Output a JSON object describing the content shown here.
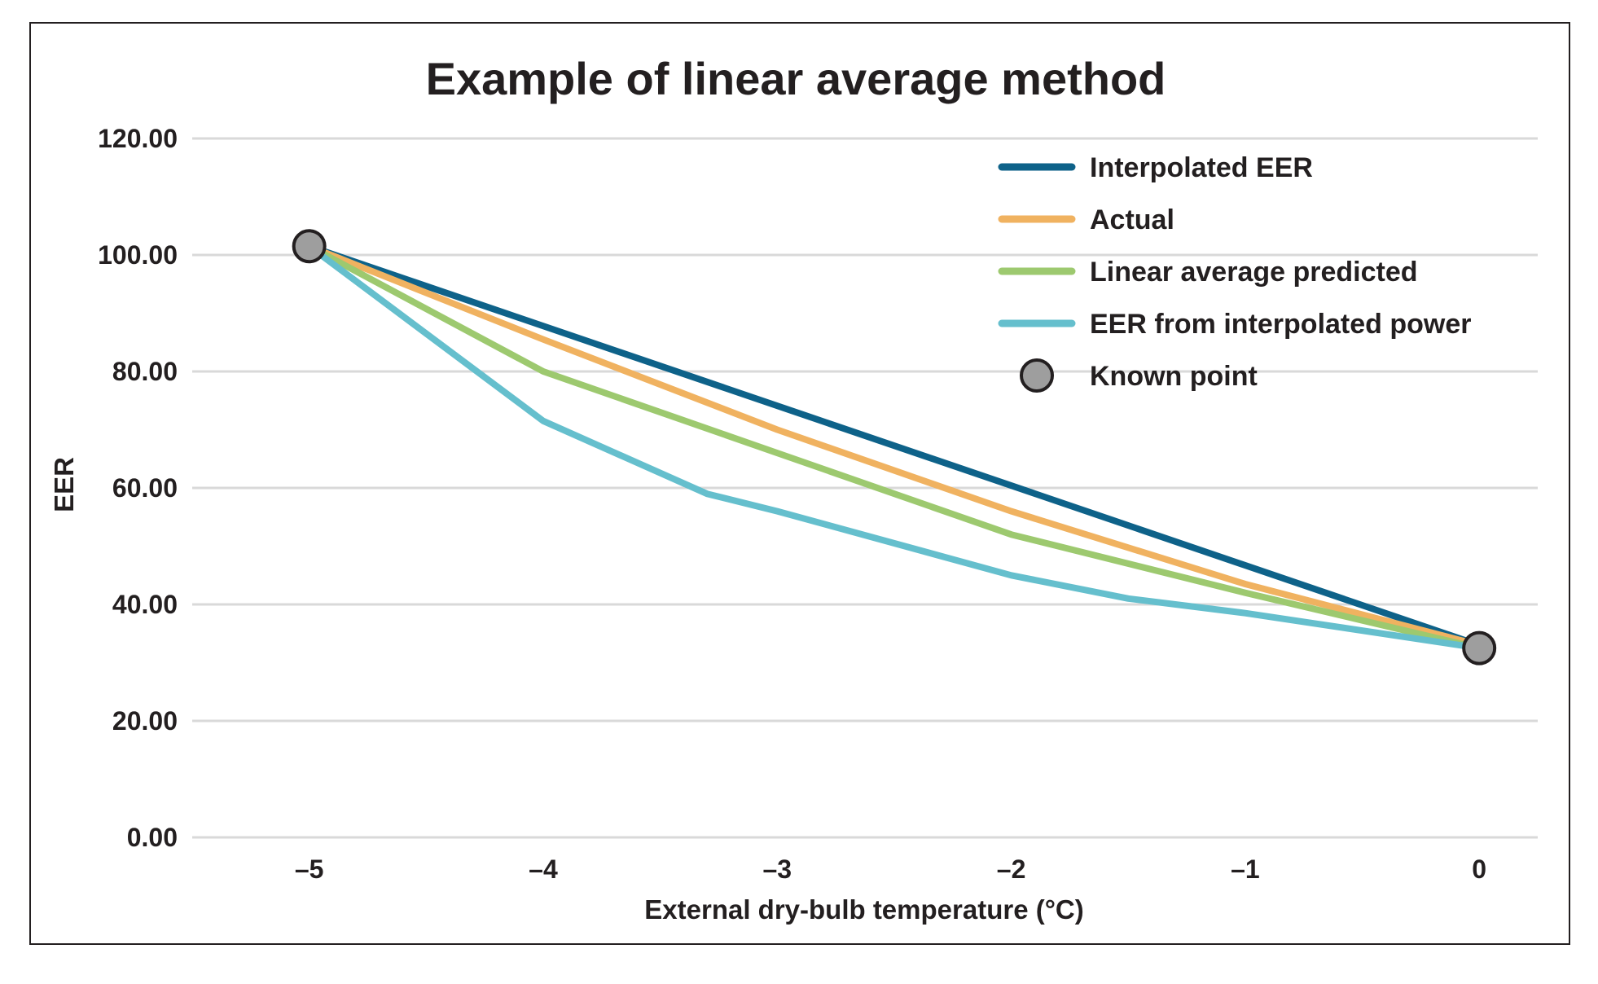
{
  "chart_data": {
    "type": "line",
    "title": "Example of linear average method",
    "xlabel": "External dry-bulb temperature (°C)",
    "ylabel": "EER",
    "xlim": [
      -5.5,
      0.25
    ],
    "ylim": [
      0,
      120
    ],
    "x_ticks": [
      -5,
      -4,
      -3,
      -2,
      -1,
      0
    ],
    "x_tick_labels": [
      "–5",
      "–4",
      "–3",
      "–2",
      "–1",
      "0"
    ],
    "y_ticks": [
      0,
      20,
      40,
      60,
      80,
      100,
      120
    ],
    "y_tick_labels": [
      "0.00",
      "20.00",
      "40.00",
      "60.00",
      "80.00",
      "100.00",
      "120.00"
    ],
    "grid": "horizontal",
    "legend_position": "top-right",
    "series": [
      {
        "name": "Interpolated EER",
        "color": "#0e6289",
        "x": [
          -5,
          0
        ],
        "y": [
          101.5,
          33.0
        ]
      },
      {
        "name": "Actual",
        "color": "#f0b260",
        "x": [
          -5,
          -4,
          -3,
          -2,
          -1,
          0
        ],
        "y": [
          101.5,
          85.5,
          70.0,
          56.0,
          43.5,
          33.0
        ]
      },
      {
        "name": "Linear average predicted",
        "color": "#9dc96f",
        "x": [
          -5,
          -4,
          -3,
          -2,
          -1,
          0
        ],
        "y": [
          101.5,
          80.0,
          66.0,
          52.0,
          42.0,
          32.5
        ]
      },
      {
        "name": "EER from interpolated power",
        "color": "#65bfcd",
        "x": [
          -5,
          -4,
          -3.3,
          -3,
          -2,
          -1.5,
          -1,
          0
        ],
        "y": [
          101.5,
          71.5,
          59.0,
          56.0,
          45.0,
          41.0,
          38.5,
          32.5
        ]
      }
    ],
    "known_points": {
      "name": "Known point",
      "color": "#9e9e9e",
      "x": [
        -5,
        0
      ],
      "y": [
        101.5,
        32.5
      ]
    }
  }
}
